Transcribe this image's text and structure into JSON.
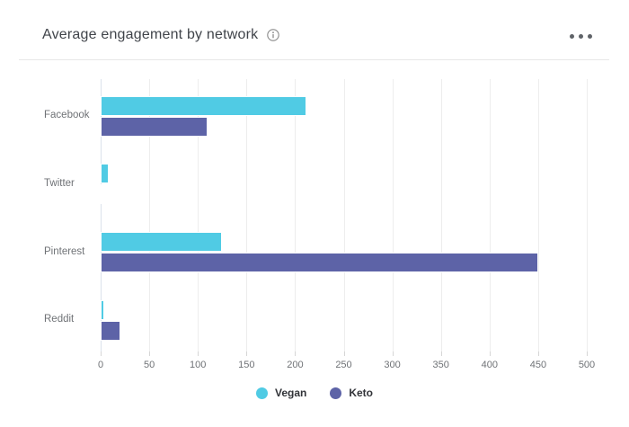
{
  "header": {
    "title": "Average engagement by network"
  },
  "colors": {
    "vegan": "#50cbe4",
    "keto": "#5d63a7",
    "grid": "#ededed",
    "zero_axis": "#dbe2ec",
    "tick": "#d6d6d6",
    "divider": "#e7e7e7",
    "axis_text": "#6f7276",
    "title_text": "#40444a",
    "legend_text": "#313338",
    "icon_gray": "#8a8a8a"
  },
  "chart_data": {
    "type": "bar",
    "orientation": "horizontal",
    "title": "Average engagement by network",
    "categories": [
      "Facebook",
      "Twitter",
      "Pinterest",
      "Reddit"
    ],
    "series": [
      {
        "name": "Vegan",
        "color": "#50cbe4",
        "values": [
          212,
          8,
          125,
          4
        ]
      },
      {
        "name": "Keto",
        "color": "#5d63a7",
        "values": [
          110,
          2,
          450,
          20
        ]
      }
    ],
    "xlim": [
      0,
      500
    ],
    "xticks": [
      0,
      50,
      100,
      150,
      200,
      250,
      300,
      350,
      400,
      450,
      500
    ],
    "grid": true,
    "legend_position": "bottom-center"
  }
}
